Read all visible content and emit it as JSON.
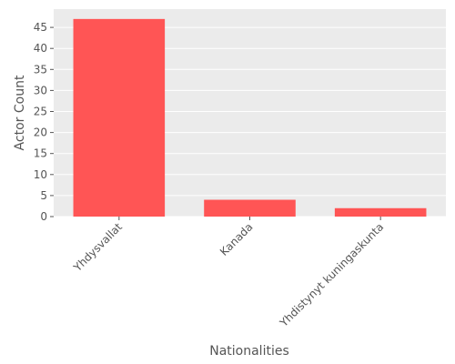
{
  "chart_data": {
    "type": "bar",
    "categories": [
      "Yhdysvallat",
      "Kanada",
      "Yhdistynyt kuningaskunta"
    ],
    "values": [
      47,
      4,
      2
    ],
    "title": "",
    "xlabel": "Nationalities",
    "ylabel": "Actor Count",
    "ylim": [
      0,
      49.35
    ],
    "yticks": [
      0,
      5,
      10,
      15,
      20,
      25,
      30,
      35,
      40,
      45
    ],
    "grid": true,
    "colors": {
      "bar": "#ff5555",
      "panel": "#ebebeb",
      "grid": "#ffffff",
      "text": "#555555"
    }
  }
}
